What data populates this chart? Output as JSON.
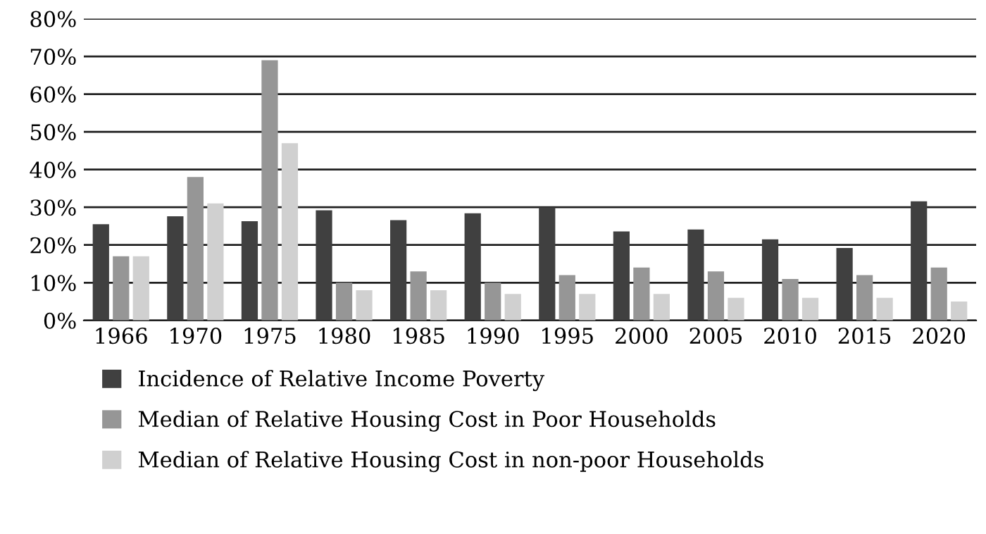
{
  "chart_data": {
    "type": "bar",
    "categories": [
      "1966",
      "1970",
      "1975",
      "1980",
      "1985",
      "1990",
      "1995",
      "2000",
      "2005",
      "2010",
      "2015",
      "2020"
    ],
    "series": [
      {
        "name": "Incidence of Relative Income Poverty",
        "color": "#404040",
        "values": [
          25.5,
          27.6,
          26.3,
          29.2,
          26.6,
          28.4,
          30,
          23.6,
          24.1,
          21.5,
          19.2,
          31.6
        ]
      },
      {
        "name": "Median of Relative Housing Cost in Poor Households",
        "color": "#969696",
        "values": [
          17,
          38,
          69,
          10,
          13,
          10,
          12,
          14,
          13,
          11,
          12,
          14
        ]
      },
      {
        "name": "Median of Relative Housing Cost in non-poor Households",
        "color": "#d0d0d0",
        "values": [
          17,
          31,
          47,
          8,
          8,
          7,
          7,
          7,
          6,
          6,
          6,
          5
        ]
      }
    ],
    "ylim": [
      0,
      80
    ],
    "yticks": [
      {
        "value": 0,
        "label": "0%"
      },
      {
        "value": 10,
        "label": "10%"
      },
      {
        "value": 20,
        "label": "20%"
      },
      {
        "value": 30,
        "label": "30%"
      },
      {
        "value": 40,
        "label": "40%"
      },
      {
        "value": 50,
        "label": "50%"
      },
      {
        "value": 60,
        "label": "60%"
      },
      {
        "value": 70,
        "label": "70%"
      },
      {
        "value": 80,
        "label": "80%"
      }
    ],
    "grid": "y",
    "legend": "bottom"
  }
}
